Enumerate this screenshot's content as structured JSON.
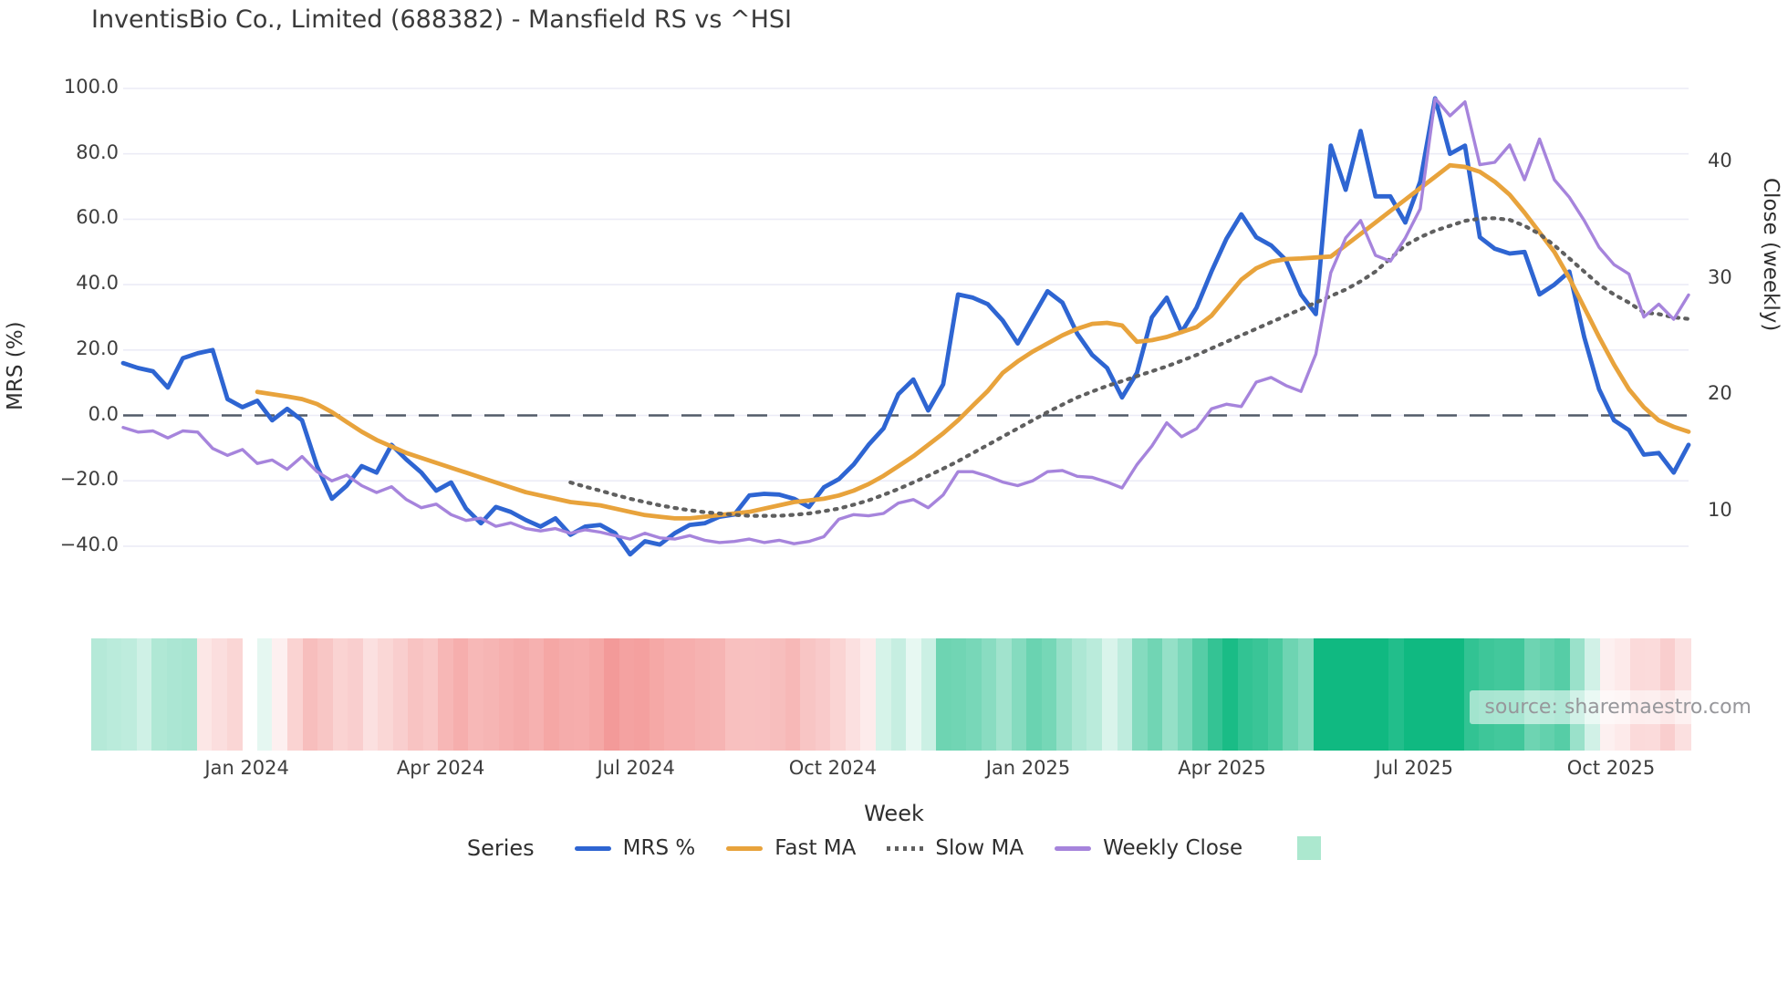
{
  "title": "InventisBio Co., Limited (688382) - Mansfield RS vs ^HSI",
  "source": "source: sharemaestro.com",
  "legend": {
    "title": "Series",
    "items": [
      {
        "label": "MRS %",
        "swatch": "line",
        "color": "#2e65d2"
      },
      {
        "label": "Fast MA",
        "swatch": "line",
        "color": "#e8a33c"
      },
      {
        "label": "Slow MA",
        "swatch": "dotted",
        "color": "#5f5f5f"
      },
      {
        "label": "Weekly Close",
        "swatch": "line",
        "color": "#a684dc"
      },
      {
        "label": "",
        "swatch": "patch",
        "color": "#ace8cf"
      }
    ]
  },
  "colors": {
    "grid": "#ececf6",
    "zero_line": "#525b68",
    "heat_positive": "#10b981",
    "heat_negative": "#ee6c6a",
    "text": "#3b3b3b"
  },
  "chart_data": {
    "type": "line",
    "title": "InventisBio Co., Limited (688382) - Mansfield RS vs ^HSI",
    "x_axis": {
      "label": "Week",
      "unit": "weekly points, index 0-105",
      "tick_labels": [
        "Jan 2024",
        "Apr 2024",
        "Jul 2024",
        "Oct 2024",
        "Jan 2025",
        "Apr 2025",
        "Jul 2025",
        "Oct 2025"
      ],
      "tick_week_index": [
        8.3,
        21.3,
        34.4,
        47.6,
        60.7,
        73.7,
        86.6,
        99.8
      ]
    },
    "y_left": {
      "label": "MRS (%)",
      "tick_values": [
        100,
        80,
        60,
        40,
        20,
        0,
        -20,
        -40
      ],
      "tick_labels": [
        "100.0",
        "80.0",
        "60.0",
        "40.0",
        "20.0",
        "0.0",
        "−20.0",
        "−40.0"
      ],
      "range": [
        -48,
        105
      ]
    },
    "y_right": {
      "label": "Close (weekly)",
      "tick_values": [
        40,
        30,
        20,
        10
      ],
      "tick_labels": [
        "40",
        "30",
        "20",
        "10"
      ]
    },
    "zero_line": {
      "value": 0,
      "style": "dashed"
    },
    "grid": "horizontal only",
    "legend_position": "bottom",
    "series": [
      {
        "name": "MRS %",
        "axis": "left",
        "color": "#2e65d2",
        "style": "solid",
        "width": 4.8,
        "values": [
          16,
          14.5,
          13.5,
          8.5,
          17.5,
          19,
          20,
          5,
          2.5,
          4.5,
          -1.5,
          2,
          -1.5,
          -15.5,
          -25.5,
          -21.5,
          -15.5,
          -17.5,
          -9,
          -13.5,
          -17.5,
          -23,
          -20.5,
          -28.5,
          -33,
          -28,
          -29.5,
          -32,
          -34,
          -31.5,
          -36.5,
          -34,
          -33.5,
          -36,
          -42.5,
          -38.5,
          -39.5,
          -36,
          -33.5,
          -33,
          -31,
          -30.3,
          -24.5,
          -24,
          -24.2,
          -25.5,
          -28,
          -22,
          -19.5,
          -15,
          -9,
          -4,
          6.5,
          11,
          1.5,
          9.5,
          37,
          36,
          34,
          29,
          22,
          30,
          38,
          34.5,
          25,
          18.5,
          14.5,
          5.5,
          13,
          30,
          36,
          25.5,
          33,
          44,
          54,
          61.5,
          54.5,
          52,
          47.5,
          37,
          31,
          82.5,
          69,
          87,
          67,
          67,
          59,
          71.5,
          97,
          80,
          82.5,
          54.5,
          51,
          49.5,
          50,
          37,
          40,
          44,
          24,
          8,
          -1.5,
          -4.5,
          -12,
          -11.5,
          -17.5,
          -9
        ]
      },
      {
        "name": "Fast MA",
        "axis": "left",
        "color": "#e8a33c",
        "style": "solid",
        "width": 4.8,
        "values": [
          null,
          null,
          null,
          null,
          null,
          null,
          null,
          null,
          null,
          7.2,
          6.5,
          5.8,
          5,
          3.5,
          1,
          -2,
          -5,
          -7.5,
          -9.5,
          -11.5,
          -13,
          -14.5,
          -16,
          -17.5,
          -19,
          -20.5,
          -22,
          -23.5,
          -24.5,
          -25.5,
          -26.5,
          -27,
          -27.5,
          -28.5,
          -29.5,
          -30.5,
          -31,
          -31.5,
          -31.5,
          -31,
          -30.5,
          -30,
          -29.5,
          -28.5,
          -27.5,
          -26.5,
          -26,
          -25.5,
          -24.5,
          -23,
          -21,
          -18.5,
          -15.5,
          -12.5,
          -9,
          -5.5,
          -1.5,
          3,
          7.5,
          13,
          16.5,
          19.5,
          22,
          24.5,
          26.5,
          28,
          28.3,
          27.5,
          22.5,
          23,
          24,
          25.5,
          27,
          30.5,
          36,
          41.5,
          45,
          47,
          47.8,
          48,
          48.3,
          48.6,
          52,
          55.5,
          59,
          62.5,
          66,
          69.5,
          73,
          76.5,
          76,
          74.5,
          71.5,
          67.5,
          62,
          56,
          50,
          42,
          33,
          24,
          15.5,
          8,
          2.5,
          -1.5,
          -3.5,
          -5
        ]
      },
      {
        "name": "Slow MA",
        "axis": "left",
        "color": "#5f5f5f",
        "style": "dotted",
        "width": 4.2,
        "values": [
          null,
          null,
          null,
          null,
          null,
          null,
          null,
          null,
          null,
          null,
          null,
          null,
          null,
          null,
          null,
          null,
          null,
          null,
          null,
          null,
          null,
          null,
          null,
          null,
          null,
          null,
          null,
          null,
          null,
          null,
          -20.5,
          -21.8,
          -23,
          -24.3,
          -25.5,
          -26.5,
          -27.5,
          -28.3,
          -29,
          -29.6,
          -30,
          -30.4,
          -30.7,
          -30.7,
          -30.7,
          -30.4,
          -30,
          -29.3,
          -28.5,
          -27.3,
          -26,
          -24.3,
          -22.5,
          -20.5,
          -18.5,
          -16.3,
          -14,
          -11.5,
          -9,
          -6.5,
          -4,
          -1.5,
          1,
          3.3,
          5.5,
          7.3,
          9,
          10.5,
          12,
          13.5,
          15,
          16.7,
          18.5,
          20.5,
          22.5,
          24.5,
          26.5,
          28.5,
          30.5,
          32.5,
          34.5,
          36.5,
          38.5,
          41,
          44,
          48,
          52,
          54.5,
          56.5,
          58,
          59.5,
          60.2,
          60.3,
          59.8,
          58,
          55.5,
          52,
          48,
          44,
          40,
          37,
          34.5,
          31.5,
          31,
          30,
          29.5
        ]
      },
      {
        "name": "Weekly Close",
        "axis": "right",
        "color": "#a684dc",
        "style": "solid",
        "width": 3.4,
        "values": [
          17.2,
          16.8,
          16.9,
          16.3,
          16.9,
          16.8,
          15.4,
          14.8,
          15.3,
          14.1,
          14.4,
          13.6,
          14.7,
          13.4,
          12.6,
          13.1,
          12.2,
          11.6,
          12.1,
          11,
          10.3,
          10.6,
          9.7,
          9.2,
          9.4,
          8.7,
          9,
          8.5,
          8.3,
          8.5,
          8.1,
          8.4,
          8.2,
          7.9,
          7.6,
          8.1,
          7.7,
          7.6,
          7.9,
          7.5,
          7.3,
          7.4,
          7.6,
          7.3,
          7.5,
          7.2,
          7.4,
          7.8,
          9.3,
          9.7,
          9.6,
          9.8,
          10.7,
          11,
          10.3,
          11.4,
          13.4,
          13.4,
          13,
          12.5,
          12.2,
          12.6,
          13.4,
          13.5,
          13,
          12.9,
          12.5,
          12,
          14,
          15.6,
          17.6,
          16.4,
          17.1,
          18.8,
          19.2,
          19,
          21.1,
          21.5,
          20.8,
          20.3,
          23.5,
          30.5,
          33.5,
          35,
          32,
          31.5,
          33.5,
          36,
          45.5,
          44,
          45.2,
          39.8,
          40,
          41.5,
          38.5,
          42,
          38.5,
          37,
          35,
          32.7,
          31.2,
          30.4,
          26.7,
          27.8,
          26.5,
          28.6
        ]
      }
    ],
    "heatmap_strip": {
      "description": "weekly color band under chart: green for positive MRS, red for negative, intensity by magnitude",
      "basis_series": "MRS %",
      "positive_color": "#10b981",
      "negative_color": "#ee6c6a",
      "gap_week": 10,
      "overrides": {
        "7": -6,
        "8": -10,
        "9": -14
      }
    }
  }
}
